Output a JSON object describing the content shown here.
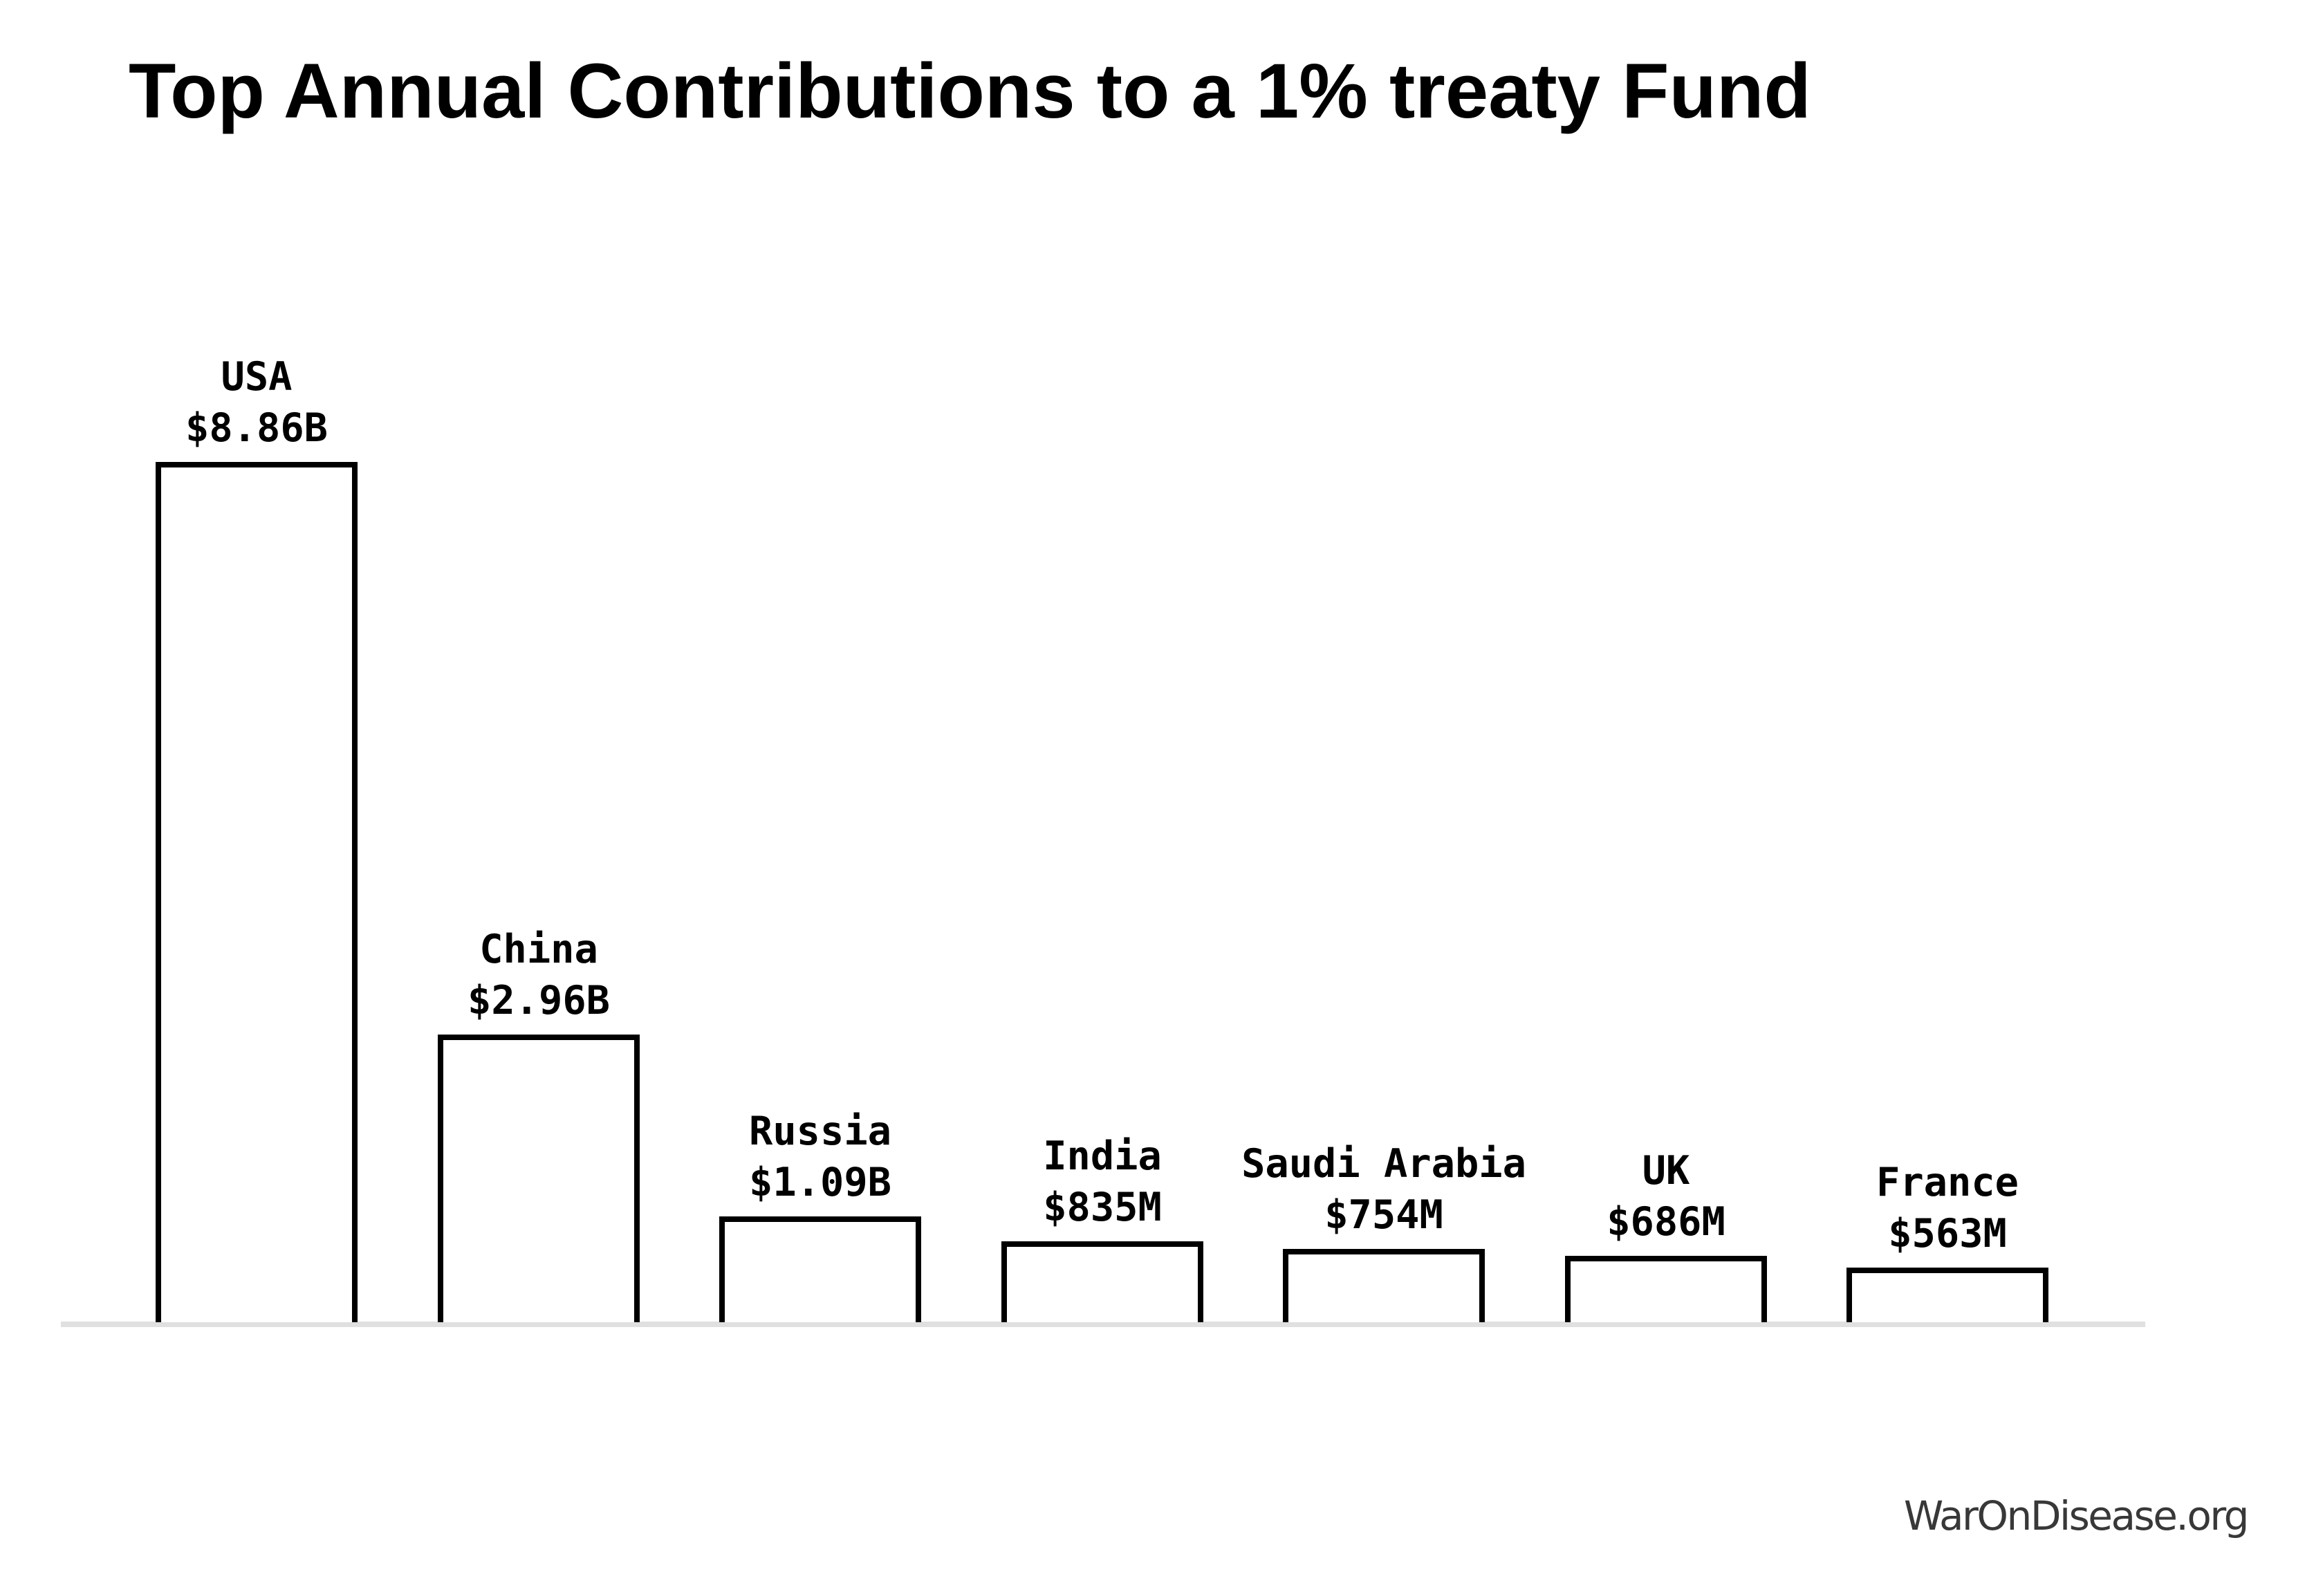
{
  "chart_data": {
    "type": "bar",
    "title": "Top Annual Contributions to a 1% treaty Fund",
    "categories": [
      "USA",
      "China",
      "Russia",
      "India",
      "Saudi Arabia",
      "UK",
      "France"
    ],
    "values": [
      8860,
      2960,
      1090,
      835,
      754,
      686,
      563
    ],
    "value_labels": [
      "$8.86B",
      "$2.96B",
      "$1.09B",
      "$835M",
      "$754M",
      "$686M",
      "$563M"
    ],
    "orientation": "vertical",
    "ylim": [
      0,
      8860
    ],
    "grid": false,
    "legend": false,
    "bar_fill": "#ffffff",
    "bar_stroke": "#000000",
    "axis_line_color": "#e0e0e0",
    "title_color": "#000000",
    "label_color": "#000000"
  },
  "footer": {
    "attribution": "WarOnDisease.org",
    "attribution_color": "#383838"
  }
}
